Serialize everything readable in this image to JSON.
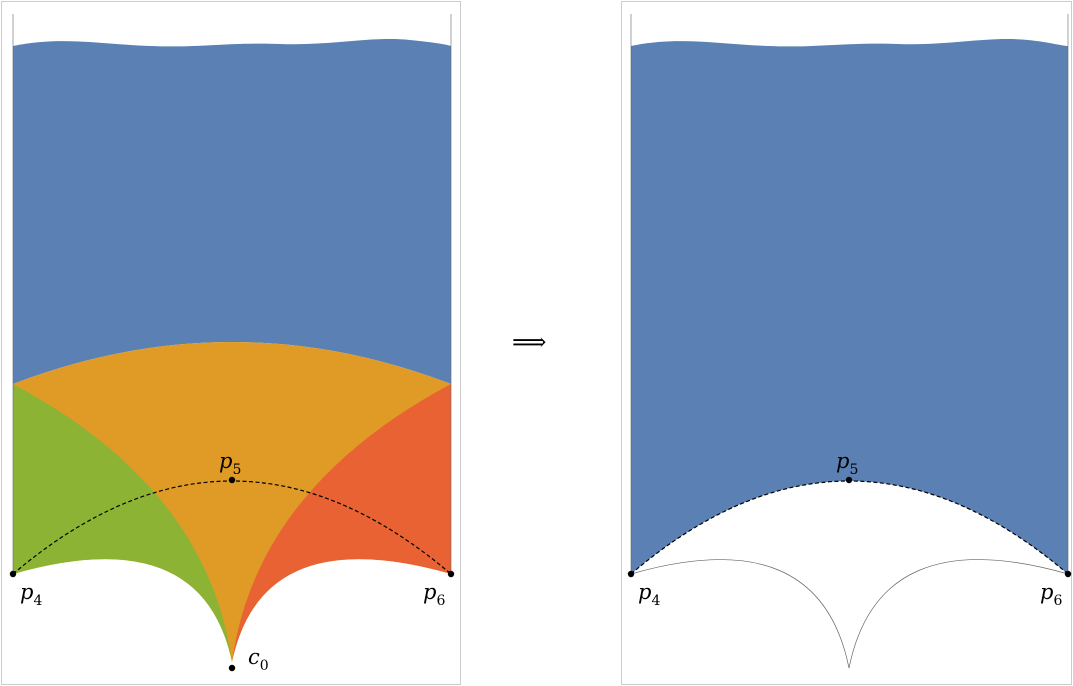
{
  "colors": {
    "blue": "#5b80b3",
    "orange": "#e09b26",
    "green": "#8db335",
    "red": "#e96233",
    "frame": "#cccccc",
    "line": "#000000",
    "thin_line": "#666666"
  },
  "left": {
    "p4": {
      "main": "p",
      "sub": "4"
    },
    "p5": {
      "main": "p",
      "sub": "5"
    },
    "p6": {
      "main": "p",
      "sub": "6"
    },
    "c0": {
      "main": "c",
      "sub": "0"
    }
  },
  "arrow": "⟹",
  "right": {
    "p4": {
      "main": "p",
      "sub": "4"
    },
    "p5": {
      "main": "p",
      "sub": "5"
    },
    "p6": {
      "main": "p",
      "sub": "6"
    }
  }
}
